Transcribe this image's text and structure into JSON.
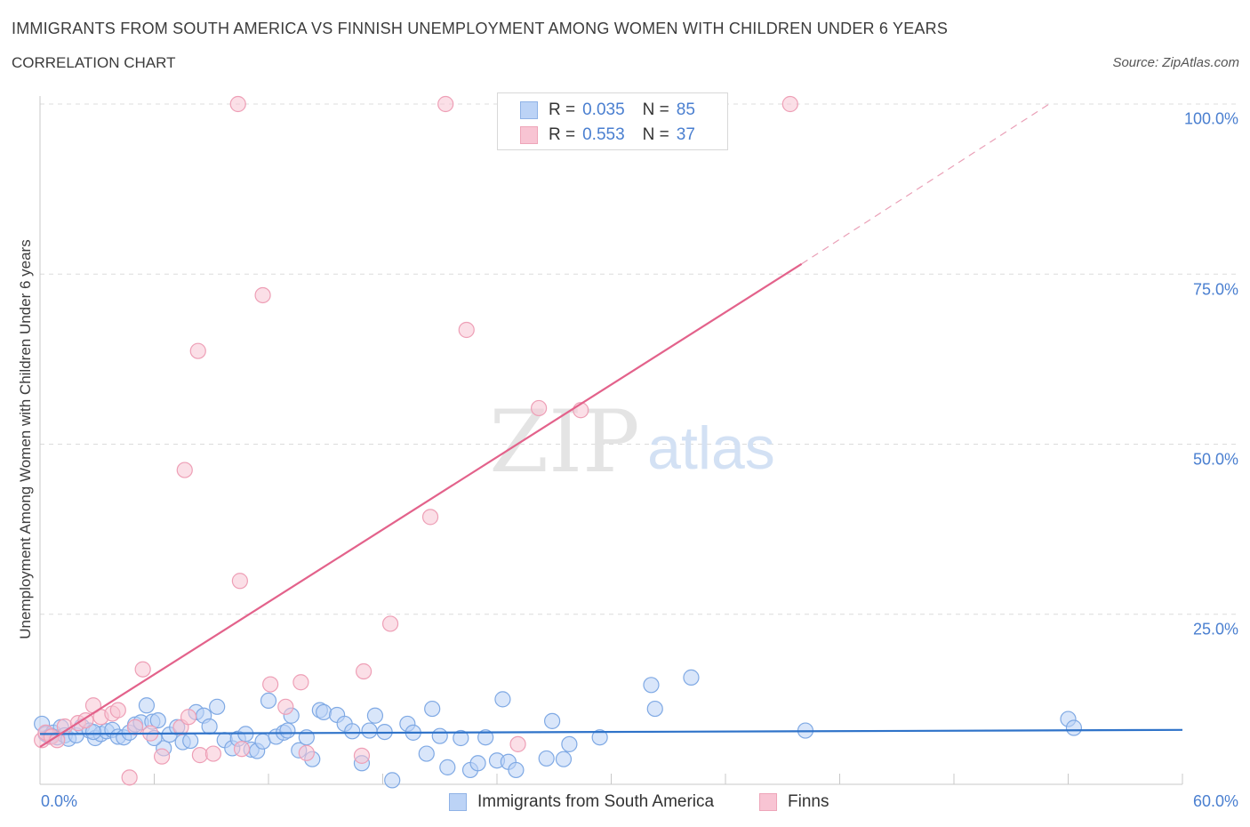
{
  "header": {
    "title": "IMMIGRANTS FROM SOUTH AMERICA VS FINNISH UNEMPLOYMENT AMONG WOMEN WITH CHILDREN UNDER 6 YEARS",
    "subtitle": "CORRELATION CHART",
    "source": "Source: ZipAtlas.com"
  },
  "stats": {
    "r_label": "R =",
    "n_label": "N =",
    "rows": [
      {
        "r": "0.035",
        "n": "85"
      },
      {
        "r": "0.553",
        "n": "37"
      }
    ]
  },
  "watermark": {
    "zip": "ZIP",
    "atlas": "atlas"
  },
  "chart_data": {
    "type": "scatter",
    "title": "IMMIGRANTS FROM SOUTH AMERICA VS FINNISH UNEMPLOYMENT AMONG WOMEN WITH CHILDREN UNDER 6 YEARS",
    "subtitle": "CORRELATION CHART",
    "xlabel": "",
    "ylabel": "Unemployment Among Women with Children Under 6 years",
    "xlim": [
      0,
      60
    ],
    "ylim": [
      0,
      100
    ],
    "x_tick_labels": [
      "0.0%",
      "60.0%"
    ],
    "y_ticks": [
      25,
      50,
      75,
      100
    ],
    "y_tick_labels": [
      "25.0%",
      "50.0%",
      "75.0%",
      "100.0%"
    ],
    "grid": true,
    "legend_position": "bottom-center",
    "colors": {
      "blue_fill": "#b9d1f5",
      "blue_stroke": "#7fa9e4",
      "blue_line": "#2f73c9",
      "pink_fill": "#f8c5d4",
      "pink_stroke": "#ee9fb6",
      "pink_line": "#e3628b",
      "axis_text": "#4a7fd0"
    },
    "series": [
      {
        "name": "Immigrants from South America",
        "color": "blue",
        "stats": {
          "R": 0.035,
          "N": 85
        },
        "trend": {
          "x0": 0,
          "y0": 7.4,
          "x1": 60,
          "y1": 8.0
        },
        "points": [
          [
            0.1,
            8.9
          ],
          [
            0.3,
            7.4
          ],
          [
            0.5,
            7.0
          ],
          [
            0.7,
            7.6
          ],
          [
            0.9,
            6.9
          ],
          [
            1.1,
            8.4
          ],
          [
            1.3,
            7.2
          ],
          [
            1.5,
            6.7
          ],
          [
            1.9,
            7.2
          ],
          [
            2.2,
            8.5
          ],
          [
            2.6,
            7.9
          ],
          [
            2.9,
            6.8
          ],
          [
            3.2,
            7.4
          ],
          [
            3.5,
            7.8
          ],
          [
            3.8,
            8.0
          ],
          [
            4.1,
            7.0
          ],
          [
            4.4,
            6.9
          ],
          [
            4.7,
            7.6
          ],
          [
            5.0,
            8.8
          ],
          [
            5.3,
            9.1
          ],
          [
            5.6,
            11.6
          ],
          [
            5.9,
            9.2
          ],
          [
            6.2,
            9.4
          ],
          [
            6.5,
            5.3
          ],
          [
            6.8,
            7.3
          ],
          [
            7.2,
            8.4
          ],
          [
            7.5,
            6.2
          ],
          [
            7.9,
            6.4
          ],
          [
            8.2,
            10.6
          ],
          [
            8.6,
            10.1
          ],
          [
            8.9,
            8.5
          ],
          [
            9.3,
            11.4
          ],
          [
            9.7,
            6.5
          ],
          [
            10.1,
            5.3
          ],
          [
            10.4,
            6.7
          ],
          [
            10.8,
            7.4
          ],
          [
            11.1,
            5.1
          ],
          [
            11.4,
            4.9
          ],
          [
            11.7,
            6.3
          ],
          [
            12.0,
            12.3
          ],
          [
            12.4,
            7.0
          ],
          [
            12.8,
            7.6
          ],
          [
            13.2,
            10.1
          ],
          [
            13.6,
            5.0
          ],
          [
            14.0,
            6.9
          ],
          [
            14.3,
            3.7
          ],
          [
            14.7,
            10.9
          ],
          [
            14.9,
            10.6
          ],
          [
            15.6,
            10.2
          ],
          [
            16.0,
            8.9
          ],
          [
            16.4,
            7.8
          ],
          [
            16.9,
            3.1
          ],
          [
            17.3,
            7.9
          ],
          [
            17.6,
            10.1
          ],
          [
            18.1,
            7.7
          ],
          [
            18.5,
            0.6
          ],
          [
            19.3,
            8.9
          ],
          [
            19.6,
            7.6
          ],
          [
            20.3,
            4.5
          ],
          [
            20.6,
            11.1
          ],
          [
            21.0,
            7.1
          ],
          [
            21.4,
            2.5
          ],
          [
            22.1,
            6.8
          ],
          [
            22.6,
            2.1
          ],
          [
            23.0,
            3.1
          ],
          [
            23.4,
            6.9
          ],
          [
            24.0,
            3.5
          ],
          [
            24.3,
            12.5
          ],
          [
            24.6,
            3.3
          ],
          [
            25.0,
            2.1
          ],
          [
            26.6,
            3.8
          ],
          [
            26.9,
            9.3
          ],
          [
            27.5,
            3.7
          ],
          [
            27.8,
            5.9
          ],
          [
            29.4,
            6.9
          ],
          [
            32.1,
            14.6
          ],
          [
            32.3,
            11.1
          ],
          [
            34.2,
            15.7
          ],
          [
            40.2,
            7.9
          ],
          [
            54.0,
            9.6
          ],
          [
            54.3,
            8.3
          ],
          [
            0.6,
            7.1
          ],
          [
            2.8,
            7.7
          ],
          [
            6.0,
            6.8
          ],
          [
            13.0,
            7.9
          ]
        ]
      },
      {
        "name": "Finns",
        "color": "pink",
        "stats": {
          "R": 0.553,
          "N": 37
        },
        "trend": {
          "x0": 0,
          "y0": 5.5,
          "x1": 40,
          "y1": 76.5,
          "dash_x1": 53,
          "dash_y1": 100
        },
        "points": [
          [
            0.1,
            6.5
          ],
          [
            0.3,
            7.6
          ],
          [
            0.6,
            7.0
          ],
          [
            0.9,
            6.5
          ],
          [
            1.3,
            8.5
          ],
          [
            2.0,
            9.0
          ],
          [
            2.4,
            9.4
          ],
          [
            2.8,
            11.6
          ],
          [
            3.2,
            9.9
          ],
          [
            3.8,
            10.4
          ],
          [
            4.1,
            10.9
          ],
          [
            4.7,
            1.0
          ],
          [
            5.0,
            8.4
          ],
          [
            5.8,
            7.5
          ],
          [
            6.4,
            4.1
          ],
          [
            7.4,
            8.4
          ],
          [
            7.8,
            9.9
          ],
          [
            8.4,
            4.3
          ],
          [
            9.1,
            4.5
          ],
          [
            10.6,
            5.2
          ],
          [
            12.1,
            14.7
          ],
          [
            12.9,
            11.4
          ],
          [
            13.7,
            15.0
          ],
          [
            14.0,
            4.6
          ],
          [
            16.9,
            4.2
          ],
          [
            17.0,
            16.6
          ],
          [
            18.4,
            23.6
          ],
          [
            20.5,
            39.3
          ],
          [
            22.4,
            66.8
          ],
          [
            25.1,
            5.9
          ],
          [
            26.2,
            55.3
          ],
          [
            28.4,
            55.0
          ],
          [
            7.6,
            46.2
          ],
          [
            8.3,
            63.7
          ],
          [
            10.5,
            29.9
          ],
          [
            11.7,
            71.9
          ],
          [
            5.4,
            16.9
          ]
        ]
      },
      {
        "name": "Finns (top row)",
        "color": "pink",
        "points": [
          [
            10.4,
            100
          ],
          [
            21.3,
            100
          ],
          [
            39.4,
            100
          ]
        ]
      }
    ]
  },
  "legend": {
    "items": [
      {
        "label": "Immigrants from South America"
      },
      {
        "label": "Finns"
      }
    ]
  }
}
